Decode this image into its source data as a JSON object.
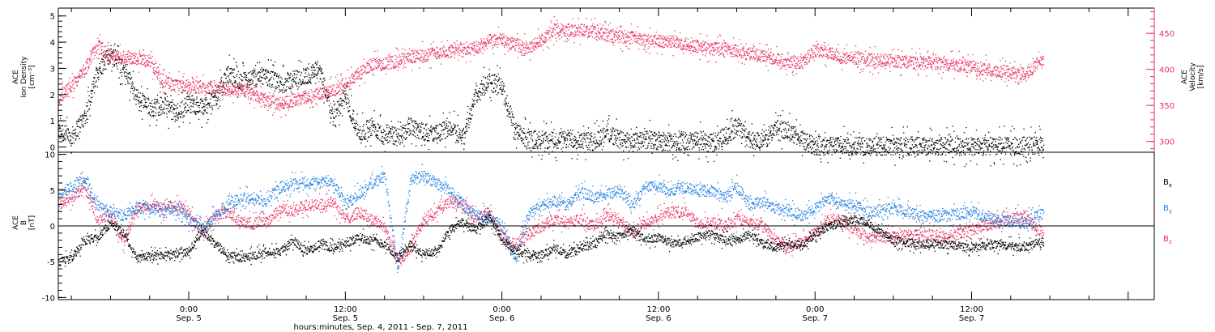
{
  "colors": {
    "black": "#000000",
    "pink": "#e8325f",
    "blue": "#1f7fe0"
  },
  "footer": {
    "xlabel": "hours:minutes, Sep.  4, 2011 - Sep.  7, 2011"
  },
  "x_axis": {
    "unit": "hours since 2011-09-04 00:00 UT",
    "range": [
      14.0,
      98.0
    ],
    "ticks": [
      {
        "x": 24,
        "time": "0:00",
        "date": "Sep. 5"
      },
      {
        "x": 36,
        "time": "12:00",
        "date": "Sep. 5"
      },
      {
        "x": 48,
        "time": "0:00",
        "date": "Sep. 6"
      },
      {
        "x": 60,
        "time": "12:00",
        "date": "Sep. 6"
      },
      {
        "x": 72,
        "time": "0:00",
        "date": "Sep. 7"
      },
      {
        "x": 84,
        "time": "12:00",
        "date": "Sep. 7"
      }
    ]
  },
  "chart_data": [
    {
      "type": "scatter",
      "panel": "top",
      "y_left": {
        "label_lines": [
          "ACE",
          "Ion Density",
          "[cm⁻³]"
        ],
        "ylim": [
          -0.2,
          5.3
        ],
        "ticks": [
          "0",
          "1",
          "2",
          "3",
          "4",
          "5"
        ],
        "tick_values": [
          0,
          1,
          2,
          3,
          4,
          5
        ]
      },
      "y_right": {
        "label_lines": [
          "ACE",
          "Velocity",
          "[km/s]"
        ],
        "ylim": [
          285,
          485
        ],
        "ticks": [
          "300",
          "350",
          "400",
          "450"
        ],
        "tick_values": [
          300,
          350,
          400,
          450
        ]
      },
      "series": [
        {
          "key": "density",
          "axis": "left",
          "color": "black",
          "x": [
            14.0,
            15.0,
            16.0,
            17.0,
            18.0,
            19.0,
            20.0,
            21.0,
            22.0,
            23.0,
            24.0,
            25.0,
            26.0,
            27.0,
            28.0,
            30.0,
            31.0,
            32.0,
            33.0,
            34.0,
            35.0,
            36.0,
            37.0,
            38.0,
            39.0,
            40.0,
            41.0,
            42.0,
            43.0,
            44.0,
            45.0,
            46.0,
            47.0,
            48.0,
            49.0,
            50.0,
            51.0,
            52.0,
            53.0,
            54.0,
            55.0,
            56.0,
            57.0,
            58.0,
            59.0,
            60.0,
            61.0,
            62.0,
            63.0,
            64.0,
            65.0,
            66.0,
            67.0,
            68.0,
            69.0,
            70.0,
            71.0,
            72.0,
            74.0,
            76.0,
            78.0,
            80.0,
            82.0,
            84.0,
            86.0,
            88.0,
            89.5
          ],
          "y": [
            0.6,
            0.4,
            1.2,
            2.9,
            3.6,
            3.0,
            1.9,
            1.5,
            1.6,
            1.3,
            1.7,
            1.5,
            1.9,
            2.8,
            2.5,
            2.7,
            2.4,
            2.6,
            2.7,
            3.0,
            1.2,
            1.9,
            0.5,
            0.8,
            0.5,
            0.4,
            0.8,
            0.6,
            0.5,
            0.8,
            0.4,
            2.0,
            2.5,
            2.3,
            0.6,
            0.3,
            0.3,
            0.25,
            0.3,
            0.3,
            0.2,
            0.6,
            0.3,
            0.2,
            0.3,
            0.25,
            0.2,
            0.25,
            0.25,
            0.15,
            0.4,
            0.8,
            0.3,
            0.2,
            0.8,
            0.6,
            0.3,
            0.05,
            0.05,
            0.05,
            0.05,
            0.05,
            0.05,
            0.05,
            0.05,
            0.05,
            0.05
          ]
        },
        {
          "key": "velocity",
          "axis": "right",
          "color": "pink",
          "x": [
            14.0,
            15.0,
            16.0,
            17.0,
            18.0,
            19.0,
            20.0,
            21.0,
            22.0,
            23.0,
            24.0,
            25.0,
            26.0,
            27.0,
            28.0,
            30.0,
            31.0,
            32.0,
            33.0,
            34.0,
            35.0,
            36.0,
            37.0,
            38.0,
            39.0,
            40.0,
            41.0,
            42.0,
            43.0,
            44.0,
            45.0,
            46.0,
            47.0,
            48.0,
            49.0,
            50.0,
            51.0,
            52.0,
            53.0,
            54.0,
            55.0,
            56.0,
            57.0,
            58.0,
            59.0,
            60.0,
            61.0,
            62.0,
            63.0,
            64.0,
            65.0,
            66.0,
            67.0,
            68.0,
            69.0,
            70.0,
            71.0,
            72.0,
            74.0,
            76.0,
            78.0,
            80.0,
            82.0,
            84.0,
            86.0,
            88.0,
            89.5
          ],
          "y": [
            360,
            378,
            400,
            435,
            418,
            418,
            416,
            412,
            385,
            378,
            376,
            376,
            376,
            372,
            372,
            358,
            352,
            358,
            362,
            366,
            372,
            382,
            394,
            408,
            408,
            412,
            418,
            420,
            424,
            425,
            430,
            428,
            440,
            440,
            435,
            430,
            440,
            455,
            455,
            455,
            452,
            448,
            446,
            445,
            440,
            440,
            438,
            436,
            432,
            430,
            428,
            426,
            422,
            418,
            415,
            412,
            410,
            428,
            418,
            414,
            412,
            410,
            408,
            404,
            398,
            394,
            412
          ]
        }
      ]
    },
    {
      "type": "scatter",
      "panel": "bottom",
      "y_left": {
        "label_lines": [
          "ACE",
          "B",
          "[nT]"
        ],
        "ylim": [
          -10.3,
          10.3
        ],
        "ticks": [
          "10",
          "5",
          "0",
          "-5",
          "-10"
        ],
        "tick_values": [
          10,
          5,
          0,
          -5,
          -10
        ]
      },
      "reference_line": 0,
      "legend_placement": "right",
      "series": [
        {
          "key": "bx",
          "name": "B",
          "sub": "x",
          "color": "black",
          "x": [
            14.0,
            15.0,
            16.0,
            17.0,
            18.0,
            19.0,
            20.0,
            21.0,
            22.0,
            23.0,
            24.0,
            25.0,
            26.0,
            27.0,
            28.0,
            30.0,
            31.0,
            32.0,
            33.0,
            34.0,
            35.0,
            36.0,
            37.0,
            38.0,
            39.0,
            40.0,
            41.0,
            42.0,
            43.0,
            44.0,
            45.0,
            46.0,
            47.0,
            48.0,
            49.0,
            50.0,
            51.0,
            52.0,
            53.0,
            54.0,
            55.0,
            56.0,
            57.0,
            58.0,
            59.0,
            60.0,
            61.0,
            62.0,
            63.0,
            64.0,
            65.0,
            66.0,
            67.0,
            68.0,
            69.0,
            70.0,
            71.0,
            72.0,
            73.0,
            74.0,
            75.0,
            76.0,
            78.0,
            80.0,
            82.0,
            84.0,
            86.0,
            88.0,
            89.5
          ],
          "y": [
            -5.0,
            -4.5,
            -2.0,
            -1.5,
            0.5,
            -1.0,
            -4.5,
            -4.2,
            -4.0,
            -3.8,
            -3.5,
            -0.5,
            -2.5,
            -4.0,
            -4.5,
            -3.5,
            -3.5,
            -2.0,
            -3.5,
            -2.5,
            -3.0,
            -2.5,
            -1.5,
            -2.0,
            -2.5,
            -4.5,
            -2.5,
            -4.0,
            -3.5,
            -0.5,
            0.5,
            -0.5,
            1.5,
            -2.0,
            -3.5,
            -4.0,
            -4.0,
            -3.0,
            -4.0,
            -3.0,
            -2.5,
            -1.0,
            -1.5,
            -0.5,
            -2.0,
            -1.5,
            -2.5,
            -2.0,
            -1.5,
            -1.0,
            -2.0,
            -2.0,
            -1.0,
            -2.5,
            -3.0,
            -2.5,
            -2.5,
            -1.0,
            0.0,
            0.5,
            1.0,
            0.5,
            -2.0,
            -2.5,
            -2.5,
            -3.0,
            -2.5,
            -3.0,
            -2.0
          ]
        },
        {
          "key": "by",
          "name": "B",
          "sub": "y",
          "color": "blue",
          "x": [
            14.0,
            15.0,
            16.0,
            17.0,
            18.0,
            19.0,
            20.0,
            21.0,
            22.0,
            23.0,
            24.0,
            25.0,
            26.0,
            27.0,
            28.0,
            30.0,
            31.0,
            32.0,
            33.0,
            34.0,
            35.0,
            36.0,
            37.0,
            38.0,
            39.0,
            40.0,
            41.0,
            42.0,
            43.0,
            44.0,
            45.0,
            46.0,
            47.0,
            48.0,
            49.0,
            50.0,
            51.0,
            52.0,
            53.0,
            54.0,
            55.0,
            56.0,
            57.0,
            58.0,
            59.0,
            60.0,
            61.0,
            62.0,
            63.0,
            64.0,
            65.0,
            66.0,
            67.0,
            68.0,
            69.0,
            70.0,
            71.0,
            72.0,
            73.0,
            74.0,
            75.0,
            76.0,
            78.0,
            80.0,
            82.0,
            84.0,
            86.0,
            88.0,
            89.5
          ],
          "y": [
            4.5,
            5.5,
            6.5,
            3.0,
            2.0,
            1.5,
            2.5,
            2.5,
            2.0,
            2.5,
            1.0,
            -0.5,
            1.5,
            3.0,
            4.0,
            3.5,
            5.5,
            6.0,
            6.0,
            6.0,
            6.5,
            3.0,
            4.5,
            6.0,
            7.0,
            -6.0,
            6.5,
            7.0,
            6.0,
            5.0,
            3.0,
            1.5,
            1.0,
            0.0,
            -4.5,
            1.5,
            3.0,
            3.5,
            3.0,
            5.0,
            4.0,
            4.5,
            5.0,
            3.0,
            5.5,
            5.5,
            5.0,
            5.5,
            5.0,
            5.0,
            4.0,
            5.5,
            3.0,
            3.5,
            2.5,
            2.0,
            1.5,
            2.5,
            4.0,
            3.0,
            3.0,
            2.0,
            2.5,
            1.5,
            1.5,
            2.0,
            1.0,
            0.5,
            2.0
          ]
        },
        {
          "key": "bz",
          "name": "B",
          "sub": "z",
          "color": "pink",
          "x": [
            14.0,
            15.0,
            16.0,
            17.0,
            18.0,
            19.0,
            20.0,
            21.0,
            22.0,
            23.0,
            24.0,
            25.0,
            26.0,
            27.0,
            28.0,
            30.0,
            31.0,
            32.0,
            33.0,
            34.0,
            35.0,
            36.0,
            37.0,
            38.0,
            39.0,
            40.0,
            41.0,
            42.0,
            43.0,
            44.0,
            45.0,
            46.0,
            47.0,
            48.0,
            49.0,
            50.0,
            51.0,
            52.0,
            53.0,
            54.0,
            55.0,
            56.0,
            57.0,
            58.0,
            59.0,
            60.0,
            61.0,
            62.0,
            63.0,
            64.0,
            65.0,
            66.0,
            67.0,
            68.0,
            69.0,
            70.0,
            71.0,
            72.0,
            73.0,
            74.0,
            75.0,
            76.0,
            78.0,
            80.0,
            82.0,
            84.0,
            86.0,
            88.0,
            89.5
          ],
          "y": [
            3.0,
            4.0,
            5.5,
            1.0,
            1.5,
            -2.0,
            2.5,
            3.0,
            2.5,
            3.0,
            2.0,
            -1.0,
            1.5,
            2.0,
            0.5,
            0.5,
            2.5,
            2.0,
            3.0,
            3.0,
            3.5,
            1.0,
            2.0,
            1.0,
            0.0,
            -5.0,
            -3.0,
            1.0,
            2.0,
            3.5,
            3.0,
            1.0,
            2.0,
            -1.5,
            -2.5,
            -1.0,
            0.0,
            1.0,
            0.5,
            1.0,
            0.0,
            1.5,
            1.0,
            -1.0,
            0.5,
            1.5,
            2.0,
            2.0,
            0.5,
            0.5,
            0.0,
            1.0,
            0.5,
            0.0,
            -2.0,
            -3.0,
            -2.0,
            -1.0,
            1.0,
            1.0,
            -0.5,
            -1.5,
            -1.5,
            -1.0,
            -1.5,
            -0.5,
            0.5,
            1.5,
            -1.0
          ]
        }
      ]
    }
  ]
}
